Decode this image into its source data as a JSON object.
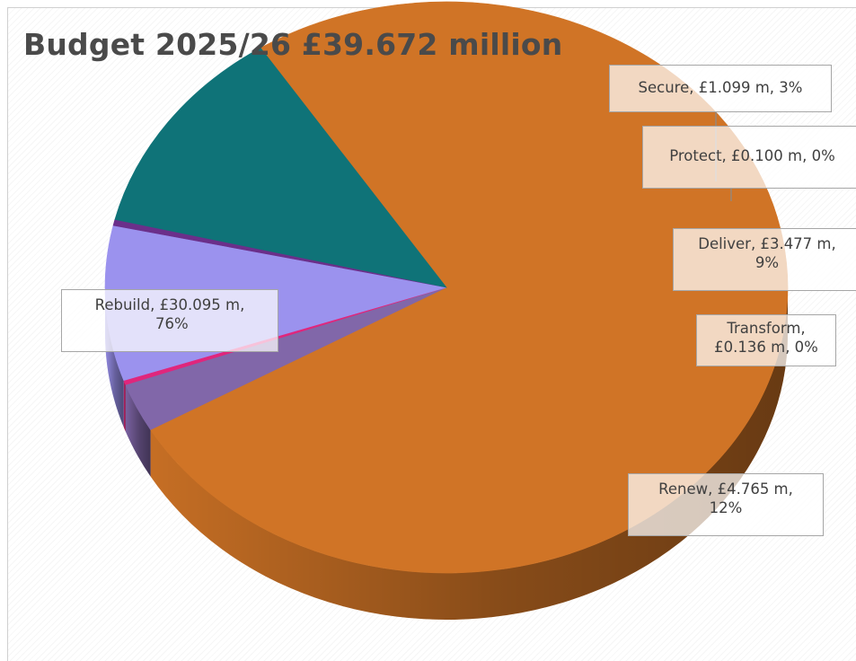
{
  "chart_data": {
    "type": "pie",
    "title": "Budget 2025/26 £39.672 million",
    "total": 39.672,
    "slices": [
      {
        "name": "Rebuild",
        "value": 30.095,
        "value_label": "£30.095 m",
        "percent_label": "76%",
        "color": "#D07426"
      },
      {
        "name": "Secure",
        "value": 1.099,
        "value_label": "£1.099 m",
        "percent_label": "3%",
        "color": "#8167A9"
      },
      {
        "name": "Protect",
        "value": 0.1,
        "value_label": "£0.100 m",
        "percent_label": "0%",
        "color": "#E0267C"
      },
      {
        "name": "Deliver",
        "value": 3.477,
        "value_label": "£3.477 m",
        "percent_label": "9%",
        "color": "#9B92EE"
      },
      {
        "name": "Transform",
        "value": 0.136,
        "value_label": "£0.136 m",
        "percent_label": "0%",
        "color": "#6B2F8A"
      },
      {
        "name": "Renew",
        "value": 4.765,
        "value_label": "£4.765 m",
        "percent_label": "12%",
        "color": "#0F7378"
      }
    ],
    "legend": "none"
  },
  "labels": {
    "rebuild": {
      "line1": "Rebuild,  £30.095 m,",
      "line2": "76%"
    },
    "secure": {
      "line1": "Secure,  £1.099 m, 3%"
    },
    "protect": {
      "line1": "Protect,  £0.100 m, 0%"
    },
    "deliver": {
      "line1": "Deliver,  £3.477 m,",
      "line2": "9%"
    },
    "transform": {
      "line1": "Transform,",
      "line2": "£0.136 m, 0%"
    },
    "renew": {
      "line1": "Renew,  £4.765 m,",
      "line2": "12%"
    }
  }
}
